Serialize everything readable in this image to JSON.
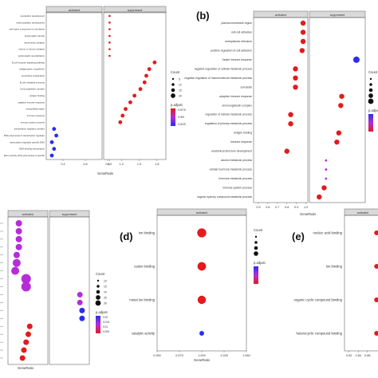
{
  "figure": {
    "panel_labels": [
      "(b)",
      "(d)",
      "(e)"
    ],
    "facet_labels": {
      "activated": "activated",
      "suppressed": "suppressed"
    },
    "legend_titles": {
      "count": "Count",
      "padjust": "p.adjust"
    },
    "colors": {
      "high": "#e41a1c",
      "low": "#2c2cf0",
      "mid": "#b62dd8",
      "strip": "#d9d9d9",
      "panel_border": "#666666"
    }
  },
  "chart_data": [
    {
      "panel": "a",
      "type": "scatter",
      "facets": [
        "activated",
        "suppressed"
      ],
      "xlabel": "GeneRatio",
      "xticks": [
        "0.4",
        "0.6",
        "0.8",
        "1.0",
        "1.2",
        "1.5",
        "1.8"
      ],
      "categories": [
        "cerebellum development",
        "metencephalon development",
        "cell-matrix component of membrane",
        "postsynaptic density",
        "asymmetric synapse",
        "neuron to neuron synapse",
        "postsynaptic specialization",
        "B cell receptor signaling pathway",
        "phagocytosis, engulfment",
        "membrane invagination",
        "B cell mediated immunity",
        "immunoglobulin complex",
        "antigen binding",
        "adaptive immune response",
        "extracellular space",
        "immune response",
        "immune system process",
        "transcription regulator complex",
        "RNA polymerase II transcription regulator",
        "transcription regulator specific DNA",
        "DNA-binding transcription",
        "factor activity, RNA polymerase II-specific"
      ],
      "points": [
        {
          "term": "cerebellum development",
          "facet": "suppressed",
          "x": 1.0,
          "color": "high"
        },
        {
          "term": "metencephalon development",
          "facet": "suppressed",
          "x": 1.0,
          "color": "high"
        },
        {
          "term": "cell-matrix component of membrane",
          "facet": "suppressed",
          "x": 1.0,
          "color": "high"
        },
        {
          "term": "postsynaptic density",
          "facet": "suppressed",
          "x": 1.0,
          "color": "high"
        },
        {
          "term": "asymmetric synapse",
          "facet": "suppressed",
          "x": 1.0,
          "color": "high"
        },
        {
          "term": "neuron to neuron synapse",
          "facet": "suppressed",
          "x": 1.0,
          "color": "high"
        },
        {
          "term": "postsynaptic specialization",
          "facet": "suppressed",
          "x": 1.0,
          "color": "high"
        },
        {
          "term": "B cell receptor signaling pathway",
          "facet": "suppressed",
          "x": 1.76,
          "color": "high"
        },
        {
          "term": "phagocytosis, engulfment",
          "facet": "suppressed",
          "x": 1.67,
          "color": "high"
        },
        {
          "term": "membrane invagination",
          "facet": "suppressed",
          "x": 1.62,
          "color": "high"
        },
        {
          "term": "B cell mediated immunity",
          "facet": "suppressed",
          "x": 1.59,
          "color": "high"
        },
        {
          "term": "immunoglobulin complex",
          "facet": "suppressed",
          "x": 1.52,
          "color": "high"
        },
        {
          "term": "antigen binding",
          "facet": "suppressed",
          "x": 1.42,
          "color": "high"
        },
        {
          "term": "adaptive immune response",
          "facet": "suppressed",
          "x": 1.35,
          "color": "high"
        },
        {
          "term": "extracellular space",
          "facet": "suppressed",
          "x": 1.27,
          "color": "high"
        },
        {
          "term": "immune response",
          "facet": "suppressed",
          "x": 1.22,
          "color": "high"
        },
        {
          "term": "immune system process",
          "facet": "suppressed",
          "x": 1.18,
          "color": "high"
        },
        {
          "term": "transcription regulator complex",
          "facet": "activated",
          "x": 0.32,
          "color": "low"
        },
        {
          "term": "RNA polymerase II transcription regulator",
          "facet": "activated",
          "x": 0.34,
          "color": "low"
        },
        {
          "term": "transcription regulator specific DNA",
          "facet": "activated",
          "x": 0.3,
          "color": "low"
        },
        {
          "term": "DNA-binding transcription",
          "facet": "activated",
          "x": 0.32,
          "color": "low"
        },
        {
          "term": "factor activity, RNA polymerase II-specific",
          "facet": "activated",
          "x": 0.3,
          "color": "low"
        }
      ],
      "legend": {
        "count": [
          "5",
          "10",
          "15",
          "20"
        ],
        "padjust": [
          "0.0075",
          "0.005",
          "0.0025"
        ]
      }
    },
    {
      "panel": "b",
      "type": "scatter",
      "facets": [
        "activated",
        "suppressed"
      ],
      "xlabel": "GeneRatio",
      "xticks": [
        "0.5",
        "0.6",
        "0.7",
        "0.8",
        "0.9",
        "1.0"
      ],
      "categories": [
        "plasma membrane region",
        "cell-cell adhesion",
        "endoplasmic reticulum",
        "positive regulation of cell adhesion",
        "innate immune response",
        "negative regulation of cellular metabolic process",
        "negative regulation of macromolecule metabolic process",
        "cell death",
        "adaptive immune response",
        "immunoglobulin complex",
        "regulation of cellular metabolic process",
        "regulation of primary metabolic process",
        "antigen binding",
        "immune response",
        "anatomical structure development",
        "alcohol metabolic process",
        "cellular hormone metabolic process",
        "hormone metabolic process",
        "immune system process",
        "organic hydroxy compound metabolic process"
      ],
      "points": [
        {
          "term": "plasma membrane region",
          "facet": "activated",
          "x": 0.97,
          "color": "high"
        },
        {
          "term": "cell-cell adhesion",
          "facet": "activated",
          "x": 0.97,
          "color": "high"
        },
        {
          "term": "endoplasmic reticulum",
          "facet": "activated",
          "x": 0.97,
          "color": "high"
        },
        {
          "term": "positive regulation of cell adhesion",
          "facet": "activated",
          "x": 0.96,
          "color": "high"
        },
        {
          "term": "innate immune response",
          "facet": "suppressed",
          "x": 0.93,
          "color": "low"
        },
        {
          "term": "negative regulation of cellular metabolic process",
          "facet": "activated",
          "x": 0.89,
          "color": "high"
        },
        {
          "term": "negative regulation of macromolecule metabolic process",
          "facet": "activated",
          "x": 0.89,
          "color": "high"
        },
        {
          "term": "cell death",
          "facet": "activated",
          "x": 0.89,
          "color": "high"
        },
        {
          "term": "adaptive immune response",
          "facet": "suppressed",
          "x": 0.78,
          "color": "high"
        },
        {
          "term": "immunoglobulin complex",
          "facet": "suppressed",
          "x": 0.77,
          "color": "high"
        },
        {
          "term": "regulation of cellular metabolic process",
          "facet": "activated",
          "x": 0.84,
          "color": "high"
        },
        {
          "term": "regulation of primary metabolic process",
          "facet": "activated",
          "x": 0.84,
          "color": "high"
        },
        {
          "term": "antigen binding",
          "facet": "suppressed",
          "x": 0.75,
          "color": "high"
        },
        {
          "term": "immune response",
          "facet": "suppressed",
          "x": 0.73,
          "color": "high"
        },
        {
          "term": "anatomical structure development",
          "facet": "activated",
          "x": 0.8,
          "color": "high"
        },
        {
          "term": "alcohol metabolic process",
          "facet": "suppressed",
          "x": 0.62,
          "color": "mid"
        },
        {
          "term": "cellular hormone metabolic process",
          "facet": "suppressed",
          "x": 0.62,
          "color": "mid"
        },
        {
          "term": "hormone metabolic process",
          "facet": "suppressed",
          "x": 0.62,
          "color": "mid"
        },
        {
          "term": "immune system process",
          "facet": "suppressed",
          "x": 0.6,
          "color": "high"
        },
        {
          "term": "organic hydroxy compound metabolic process",
          "facet": "suppressed",
          "x": 0.55,
          "color": "high"
        }
      ],
      "legend": {
        "count": [
          "",
          "",
          "",
          "",
          ""
        ],
        "padjust": [
          "",
          ""
        ]
      }
    },
    {
      "panel": "c",
      "type": "scatter",
      "facets": [
        "activated",
        "suppressed"
      ],
      "xlabel": "GeneRatio",
      "points": [
        {
          "facet": "activated",
          "x": 0.45,
          "color": "mid",
          "size": 4
        },
        {
          "facet": "activated",
          "x": 0.45,
          "color": "mid",
          "size": 4
        },
        {
          "facet": "activated",
          "x": 0.45,
          "color": "mid",
          "size": 4
        },
        {
          "facet": "activated",
          "x": 0.45,
          "color": "mid",
          "size": 4
        },
        {
          "facet": "activated",
          "x": 0.42,
          "color": "mid",
          "size": 4
        },
        {
          "facet": "activated",
          "x": 0.42,
          "color": "mid",
          "size": 5
        },
        {
          "facet": "activated",
          "x": 0.4,
          "color": "mid",
          "size": 5
        },
        {
          "facet": "activated",
          "x": 0.55,
          "color": "mid",
          "size": 6
        },
        {
          "facet": "activated",
          "x": 0.55,
          "color": "mid",
          "size": 6
        },
        {
          "facet": "suppressed",
          "x": 0.72,
          "color": "mid",
          "size": 3.5
        },
        {
          "facet": "suppressed",
          "x": 0.72,
          "color": "mid",
          "size": 3.5
        },
        {
          "facet": "suppressed",
          "x": 0.75,
          "color": "low",
          "size": 3.5
        },
        {
          "facet": "suppressed",
          "x": 0.75,
          "color": "low",
          "size": 3.5
        },
        {
          "facet": "activated",
          "x": 0.6,
          "color": "high",
          "size": 3.5
        },
        {
          "facet": "activated",
          "x": 0.58,
          "color": "high",
          "size": 3.5
        },
        {
          "facet": "activated",
          "x": 0.55,
          "color": "high",
          "size": 3.5
        },
        {
          "facet": "activated",
          "x": 0.52,
          "color": "high",
          "size": 3.5
        },
        {
          "facet": "activated",
          "x": 0.5,
          "color": "high",
          "size": 3.5
        }
      ],
      "legend": {
        "count": [
          "10",
          "15",
          "20",
          "25",
          "30"
        ],
        "padjust": [
          "0.02",
          "0.015",
          "0.01",
          "0.005"
        ]
      }
    },
    {
      "panel": "d",
      "type": "scatter",
      "facets": [
        "activated"
      ],
      "xlabel": "GeneRatio",
      "xticks": [
        "0.950",
        "0.975",
        "1.000",
        "1.025",
        "1.050"
      ],
      "xlim": [
        0.95,
        1.05
      ],
      "categories": [
        "ion binding",
        "cation binding",
        "metal ion binding",
        "catalytic activity"
      ],
      "points": [
        {
          "term": "ion binding",
          "x": 1.0,
          "count": 28,
          "color": "high"
        },
        {
          "term": "cation binding",
          "x": 1.0,
          "count": 26,
          "color": "high"
        },
        {
          "term": "metal ion binding",
          "x": 1.0,
          "count": 25,
          "color": "high"
        },
        {
          "term": "catalytic activity",
          "x": 1.0,
          "count": 11,
          "color": "low"
        }
      ],
      "legend": {
        "count": [
          "",
          "",
          "",
          ""
        ],
        "padjust": [
          "",
          "",
          "",
          "",
          ""
        ]
      }
    },
    {
      "panel": "e",
      "type": "scatter",
      "facets": [
        "activated"
      ],
      "xlabel": "GeneRatio",
      "xticks": [
        "0.82",
        "0.84",
        "0.86"
      ],
      "categories": [
        "nucleic acid binding",
        "ion binding",
        "organic cyclic compound binding",
        "heterocyclic compound binding"
      ],
      "points": [
        {
          "term": "nucleic acid binding",
          "x": 0.88,
          "color": "high"
        },
        {
          "term": "ion binding",
          "x": 0.88,
          "color": "high"
        },
        {
          "term": "organic cyclic compound binding",
          "x": 0.88,
          "color": "high"
        },
        {
          "term": "heterocyclic compound binding",
          "x": 0.88,
          "color": "high"
        }
      ]
    }
  ]
}
